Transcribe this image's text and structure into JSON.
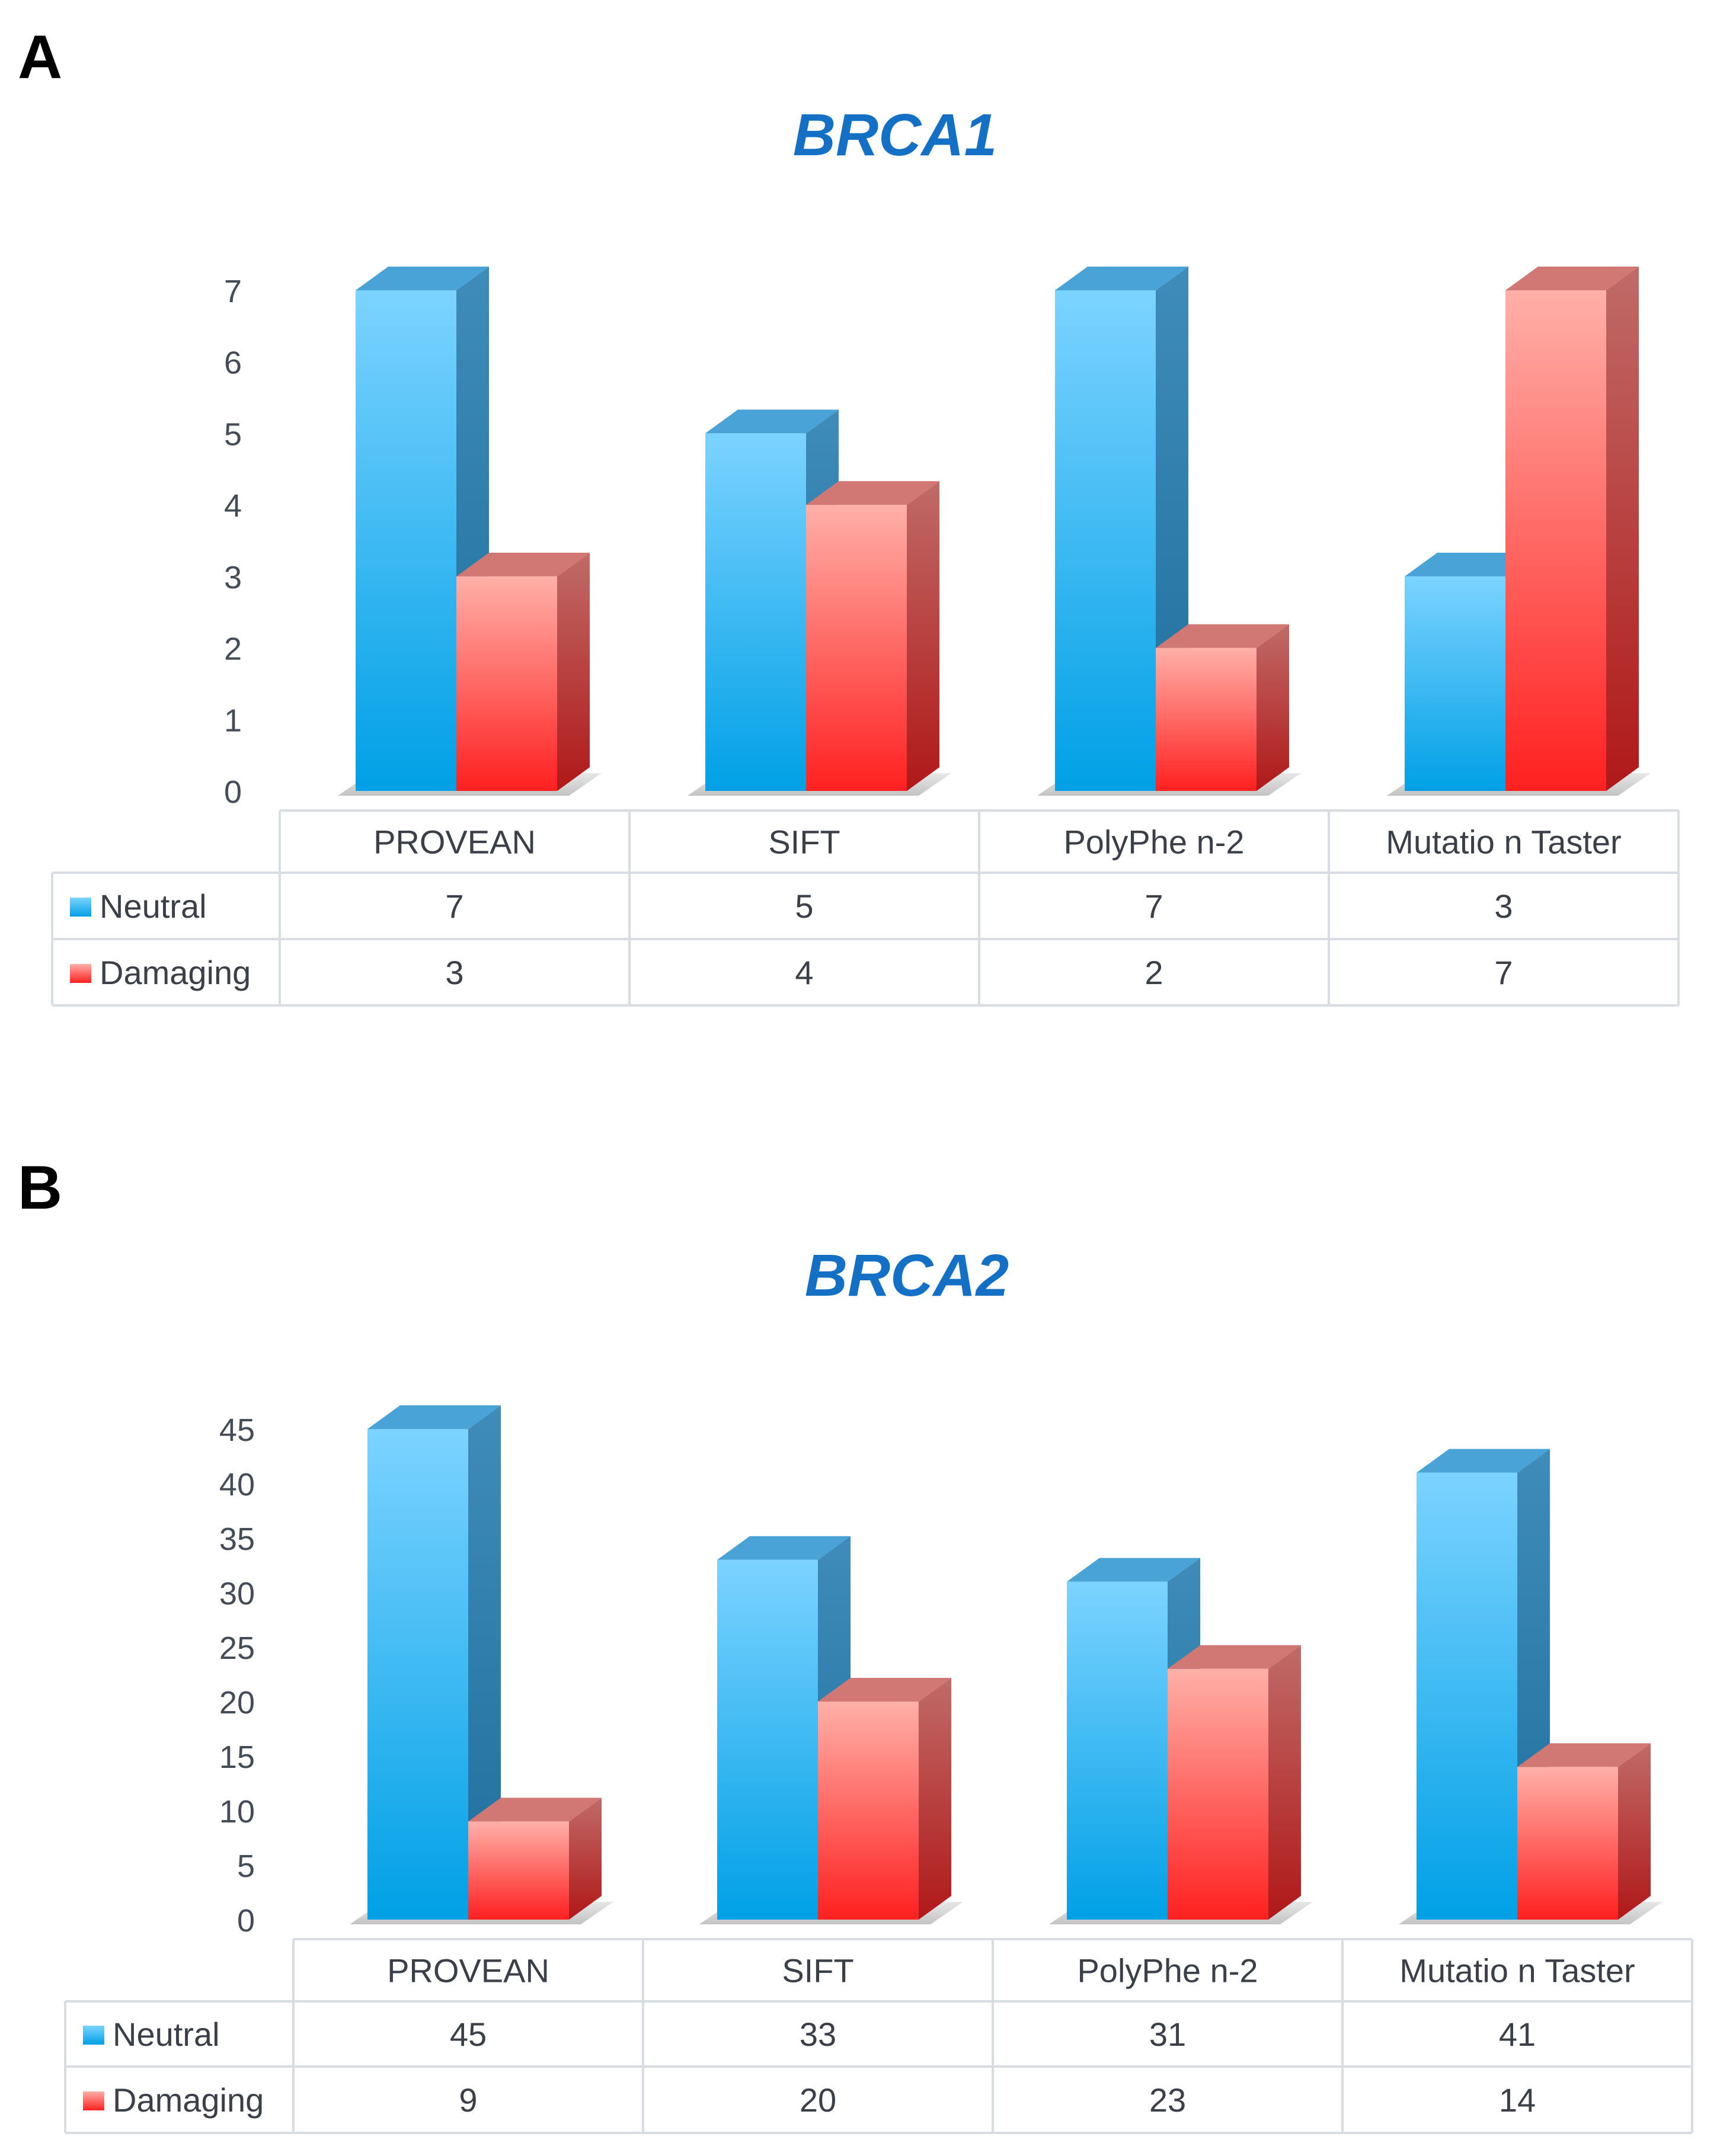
{
  "figure_labels": [
    "A",
    "B"
  ],
  "colors": {
    "title": "#1470c4",
    "neutral_light": "#7cd3ff",
    "neutral_dark": "#00a0e6",
    "neutral_side": "#2e7fae",
    "neutral_top": "#4aa3d6",
    "damaging_light": "#ffb0a8",
    "damaging_dark": "#ff2020",
    "damaging_side": "#b35a58",
    "damaging_top": "#d27874"
  },
  "chart_data": [
    {
      "type": "bar",
      "title": "BRCA1",
      "categories": [
        "PROVEAN",
        "SIFT",
        "PolyPhe n-2",
        "Mutatio n Taster"
      ],
      "series": [
        {
          "name": "Neutral",
          "values": [
            7,
            5,
            7,
            3
          ]
        },
        {
          "name": "Damaging",
          "values": [
            3,
            4,
            2,
            7
          ]
        }
      ],
      "yticks": [
        "0",
        "1",
        "2",
        "3",
        "4",
        "5",
        "6",
        "7"
      ],
      "ylim": [
        0,
        7
      ],
      "xlabel": "",
      "ylabel": "",
      "legend": "data-table"
    },
    {
      "type": "bar",
      "title": "BRCA2",
      "categories": [
        "PROVEAN",
        "SIFT",
        "PolyPhe n-2",
        "Mutatio n Taster"
      ],
      "series": [
        {
          "name": "Neutral",
          "values": [
            45,
            33,
            31,
            41
          ]
        },
        {
          "name": "Damaging",
          "values": [
            9,
            20,
            23,
            14
          ]
        }
      ],
      "yticks": [
        "0",
        "5",
        "10",
        "15",
        "20",
        "25",
        "30",
        "35",
        "40",
        "45"
      ],
      "ylim": [
        0,
        45
      ],
      "xlabel": "",
      "ylabel": "",
      "legend": "data-table"
    }
  ]
}
